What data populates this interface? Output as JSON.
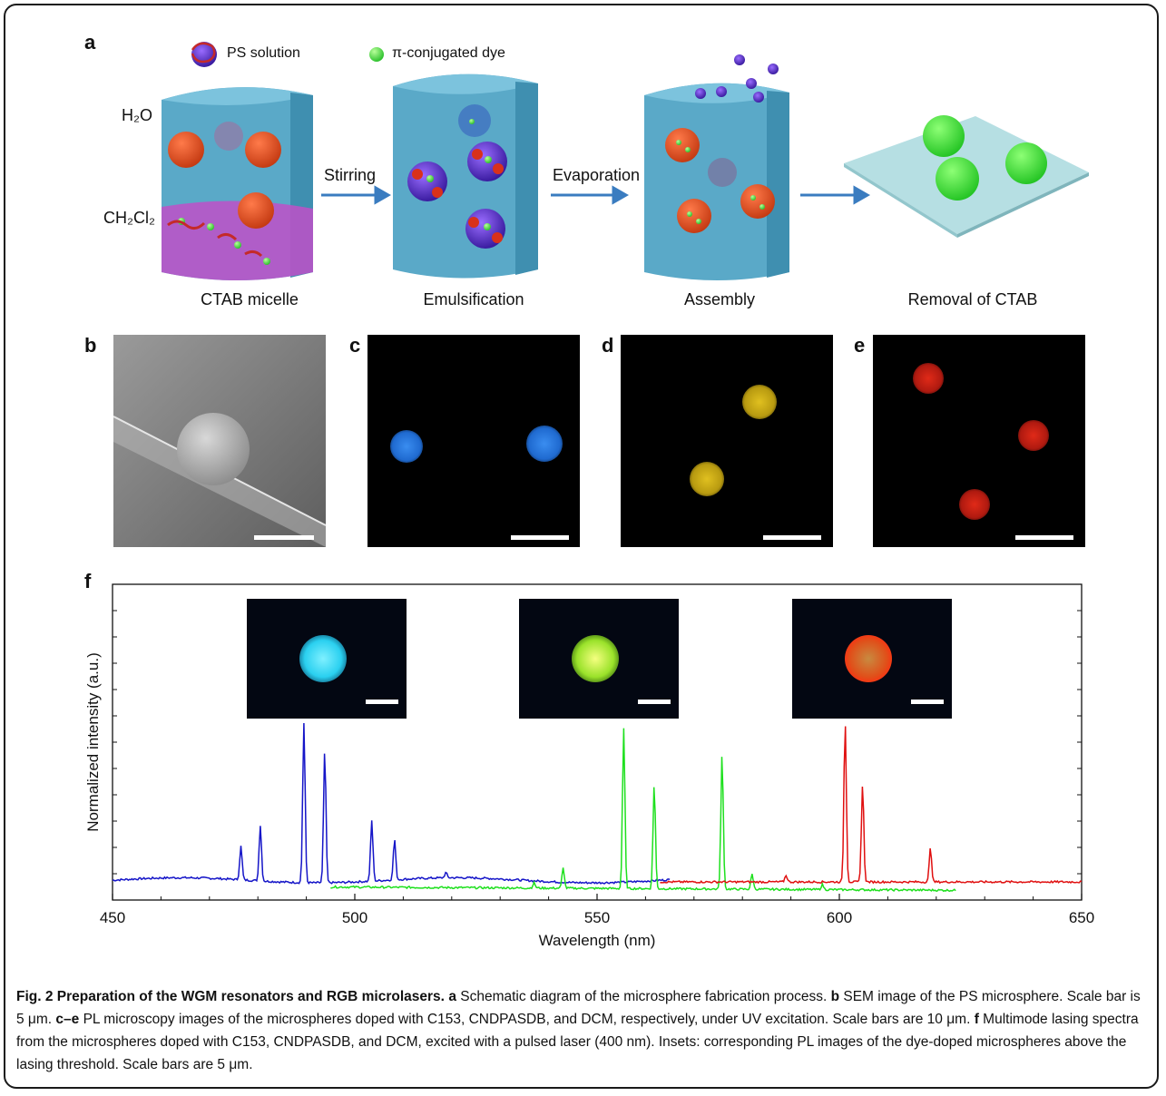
{
  "panel_labels": {
    "a": "a",
    "b": "b",
    "c": "c",
    "d": "d",
    "e": "e",
    "f": "f"
  },
  "panel_a": {
    "legend_ps": "PS solution",
    "legend_dye": "π-conjugated dye",
    "h2o": "H₂O",
    "ch2cl2": "CH₂Cl₂",
    "arrow1": "Stirring",
    "arrow2": "Evaporation",
    "stages": [
      "CTAB micelle",
      "Emulsification",
      "Assembly",
      "Removal of CTAB"
    ]
  },
  "colors": {
    "water": "#5aa9c8",
    "organic": "#c050c8",
    "ps_ball": "#e04a1e",
    "dye": "#5de35d",
    "arrow": "#3a7cc0",
    "blue_series": "#1515c8",
    "green_series": "#1ee01e",
    "red_series": "#e01010"
  },
  "chart_data": {
    "type": "line",
    "xlabel": "Wavelength (nm)",
    "ylabel": "Normalized intensity (a.u.)",
    "xlim": [
      450,
      650
    ],
    "x_ticks": [
      450,
      500,
      550,
      600,
      650
    ],
    "series": [
      {
        "color": "blue",
        "range": [
          450,
          565
        ],
        "baseline": 0.08,
        "peaks": [
          [
            476.5,
            0.2
          ],
          [
            480.5,
            0.33
          ],
          [
            489.5,
            0.95
          ],
          [
            493.8,
            0.78
          ],
          [
            503.5,
            0.36
          ],
          [
            508.2,
            0.24
          ],
          [
            518.8,
            0.03
          ]
        ]
      },
      {
        "color": "green",
        "range": [
          495,
          624
        ],
        "baseline": 0.04,
        "peaks": [
          [
            537,
            0.03
          ],
          [
            543,
            0.12
          ],
          [
            555.5,
            0.95
          ],
          [
            561.8,
            0.62
          ],
          [
            575.8,
            0.8
          ],
          [
            582,
            0.09
          ],
          [
            596.5,
            0.03
          ]
        ]
      },
      {
        "color": "red",
        "range": [
          563,
          650
        ],
        "baseline": 0.07,
        "peaks": [
          [
            589,
            0.04
          ],
          [
            601.2,
            0.95
          ],
          [
            604.8,
            0.58
          ],
          [
            618.8,
            0.2
          ]
        ]
      }
    ]
  },
  "caption": {
    "title": "Fig. 2 Preparation of the WGM resonators and RGB microlasers.",
    "a_key": "a",
    "a_text": " Schematic diagram of the microsphere fabrication process. ",
    "b_key": "b",
    "b_text": " SEM image of the PS microsphere. Scale bar is 5 μm. ",
    "ce_key": "c–e",
    "ce_text": " PL microscopy images of the microspheres doped with C153, CNDPASDB, and DCM, respectively, under UV excitation. Scale bars are 10 μm. ",
    "f_key": "f",
    "f_text": " Multimode lasing spectra from the microspheres doped with C153, CNDPASDB, and DCM, excited with a pulsed laser (400 nm). Insets: corresponding PL images of the dye-doped microspheres above the lasing threshold. Scale bars are 5 μm."
  }
}
